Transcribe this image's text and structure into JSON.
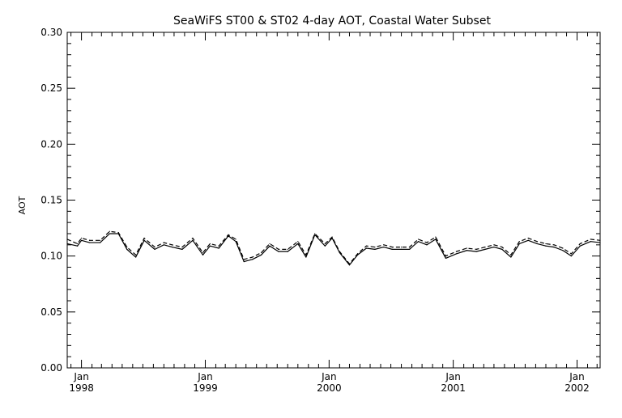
{
  "chart_data": {
    "type": "line",
    "title": "SeaWiFS ST00 & ST02 4-day AOT, Coastal Water Subset",
    "xlabel": "",
    "ylabel": "AOT",
    "x_range": [
      "1997-11-20",
      "2002-03-10"
    ],
    "ylim": [
      0.0,
      0.3
    ],
    "y_ticks": [
      "0.00",
      "0.05",
      "0.10",
      "0.15",
      "0.20",
      "0.25",
      "0.30"
    ],
    "x_ticks": [
      {
        "date": "1998-01-01",
        "month": "Jan",
        "year": "1998"
      },
      {
        "date": "1999-01-01",
        "month": "Jan",
        "year": "1999"
      },
      {
        "date": "2000-01-01",
        "month": "Jan",
        "year": "2000"
      },
      {
        "date": "2001-01-01",
        "month": "Jan",
        "year": "2001"
      },
      {
        "date": "2002-01-01",
        "month": "Jan",
        "year": "2002"
      }
    ],
    "grid": false,
    "legend": "none",
    "line_color": "#000000",
    "x": [
      "1997-11-20",
      "1997-12-20",
      "1998-01-01",
      "1998-01-25",
      "1998-02-25",
      "1998-03-25",
      "1998-04-20",
      "1998-05-15",
      "1998-06-10",
      "1998-07-05",
      "1998-08-05",
      "1998-09-01",
      "1998-09-25",
      "1998-10-25",
      "1998-11-25",
      "1998-12-25",
      "1999-01-15",
      "1999-02-10",
      "1999-03-10",
      "1999-04-01",
      "1999-04-25",
      "1999-05-20",
      "1999-06-15",
      "1999-07-10",
      "1999-08-05",
      "1999-09-01",
      "1999-10-01",
      "1999-10-25",
      "1999-11-20",
      "1999-12-20",
      "2000-01-10",
      "2000-02-01",
      "2000-03-01",
      "2000-03-25",
      "2000-04-20",
      "2000-05-15",
      "2000-06-10",
      "2000-07-05",
      "2000-08-01",
      "2000-08-25",
      "2000-09-20",
      "2000-10-15",
      "2000-11-10",
      "2000-12-10",
      "2001-01-10",
      "2001-02-10",
      "2001-03-10",
      "2001-04-05",
      "2001-05-01",
      "2001-05-25",
      "2001-06-20",
      "2001-07-15",
      "2001-08-10",
      "2001-09-05",
      "2001-10-01",
      "2001-10-25",
      "2001-11-20",
      "2001-12-15",
      "2002-01-10",
      "2002-02-10",
      "2002-03-10"
    ],
    "series": [
      {
        "style": "solid",
        "values": [
          0.111,
          0.109,
          0.114,
          0.112,
          0.112,
          0.12,
          0.12,
          0.106,
          0.099,
          0.114,
          0.106,
          0.11,
          0.108,
          0.106,
          0.114,
          0.101,
          0.109,
          0.107,
          0.118,
          0.113,
          0.095,
          0.097,
          0.101,
          0.109,
          0.104,
          0.104,
          0.111,
          0.099,
          0.119,
          0.109,
          0.116,
          0.103,
          0.092,
          0.101,
          0.107,
          0.106,
          0.108,
          0.106,
          0.106,
          0.106,
          0.113,
          0.11,
          0.115,
          0.098,
          0.102,
          0.105,
          0.104,
          0.106,
          0.108,
          0.106,
          0.099,
          0.111,
          0.114,
          0.111,
          0.109,
          0.108,
          0.105,
          0.1,
          0.109,
          0.113,
          0.112
        ]
      },
      {
        "style": "dashed",
        "values": [
          0.115,
          0.111,
          0.116,
          0.114,
          0.114,
          0.122,
          0.121,
          0.108,
          0.101,
          0.116,
          0.108,
          0.112,
          0.11,
          0.108,
          0.116,
          0.103,
          0.111,
          0.109,
          0.119,
          0.115,
          0.097,
          0.099,
          0.103,
          0.111,
          0.106,
          0.106,
          0.113,
          0.101,
          0.12,
          0.111,
          0.117,
          0.104,
          0.093,
          0.102,
          0.109,
          0.108,
          0.11,
          0.108,
          0.108,
          0.108,
          0.115,
          0.112,
          0.117,
          0.1,
          0.104,
          0.107,
          0.106,
          0.108,
          0.11,
          0.108,
          0.101,
          0.113,
          0.116,
          0.113,
          0.111,
          0.11,
          0.107,
          0.102,
          0.111,
          0.115,
          0.114
        ]
      }
    ]
  }
}
